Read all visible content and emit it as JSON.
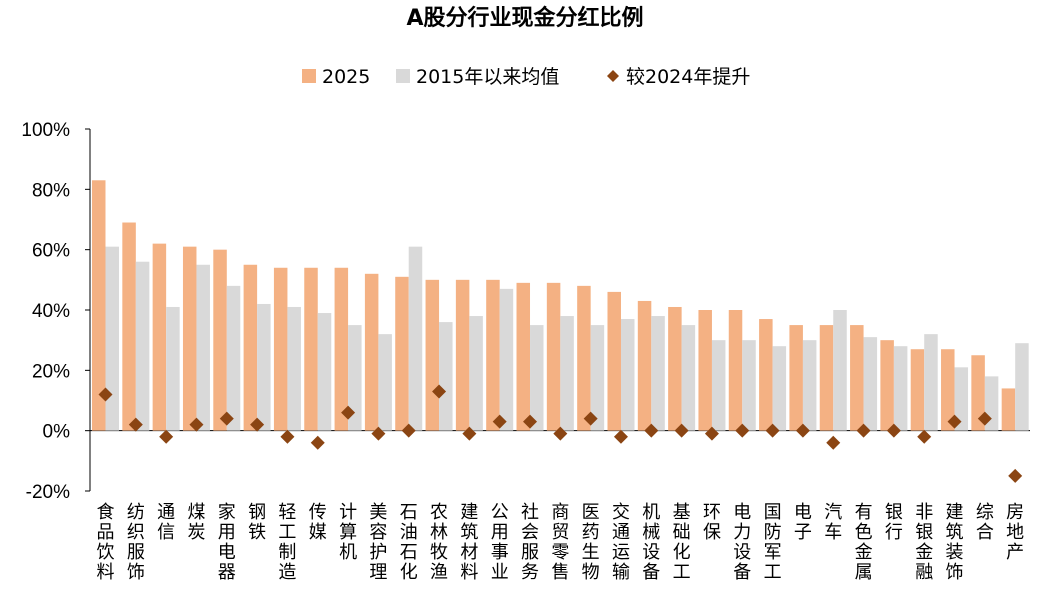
{
  "chart_data": {
    "type": "bar",
    "title": "A股分行业现金分红比例",
    "categories": [
      "食品饮料",
      "纺织服饰",
      "通信",
      "煤炭",
      "家用电器",
      "钢铁",
      "轻工制造",
      "传媒",
      "计算机",
      "美容护理",
      "石油石化",
      "农林牧渔",
      "建筑材料",
      "公用事业",
      "社会服务",
      "商贸零售",
      "医药生物",
      "交通运输",
      "机械设备",
      "基础化工",
      "环保",
      "电力设备",
      "国防军工",
      "电子",
      "汽车",
      "有色金属",
      "银行",
      "非银金融",
      "建筑装饰",
      "综合",
      "房地产"
    ],
    "series": [
      {
        "name": "2025",
        "kind": "bar",
        "color": "#F4B183",
        "values": [
          83,
          69,
          62,
          61,
          60,
          55,
          54,
          54,
          54,
          52,
          51,
          50,
          50,
          50,
          49,
          49,
          48,
          46,
          43,
          41,
          40,
          40,
          37,
          35,
          35,
          35,
          30,
          27,
          27,
          25,
          14
        ]
      },
      {
        "name": "2015年以来均值",
        "kind": "bar",
        "color": "#D9D9D9",
        "values": [
          61,
          56,
          41,
          55,
          48,
          42,
          41,
          39,
          35,
          32,
          61,
          36,
          38,
          47,
          35,
          38,
          35,
          37,
          38,
          35,
          30,
          30,
          28,
          30,
          40,
          31,
          28,
          32,
          21,
          18,
          29
        ]
      },
      {
        "name": "较2024年提升",
        "kind": "marker",
        "color": "#8B4513",
        "values": [
          12,
          2,
          -2,
          2,
          4,
          2,
          -2,
          -4,
          6,
          -1,
          0,
          13,
          -1,
          3,
          3,
          -1,
          4,
          -2,
          0,
          0,
          -1,
          0,
          0,
          0,
          -4,
          0,
          0,
          -2,
          3,
          4,
          -15
        ]
      }
    ],
    "yaxis": {
      "min": -20,
      "max": 100,
      "step": 20,
      "ticks": [
        "-20%",
        "0%",
        "20%",
        "40%",
        "60%",
        "80%",
        "100%"
      ]
    },
    "grid": false,
    "legend_position": "top"
  }
}
